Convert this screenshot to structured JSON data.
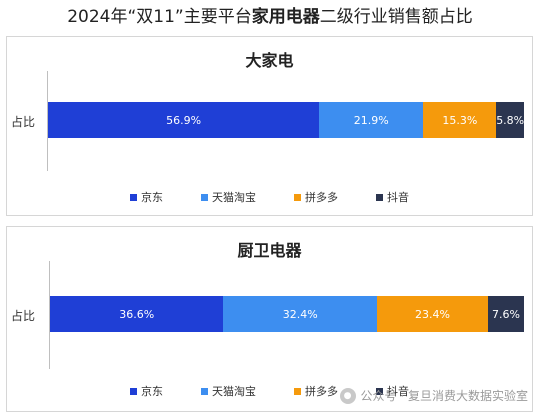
{
  "page": {
    "title_prefix": "2024年“双11”主要平台",
    "title_bold": "家用电器",
    "title_suffix": "二级行业销售额占比"
  },
  "watermark": {
    "text": "公众号 · 复旦消费大数据实验室",
    "icon": "wechat-icon"
  },
  "colors": {
    "京东": "#1f3fd6",
    "天猫淘宝": "#3d8ef0",
    "拼多多": "#f59a0c",
    "抖音": "#2b3550"
  },
  "chart_data": [
    {
      "type": "bar",
      "stacked": true,
      "orientation": "horizontal",
      "percent": true,
      "title": "大家电",
      "categories": [
        "占比"
      ],
      "series": [
        {
          "name": "京东",
          "values": [
            56.9
          ],
          "label": "56.9%"
        },
        {
          "name": "天猫淘宝",
          "values": [
            21.9
          ],
          "label": "21.9%"
        },
        {
          "name": "拼多多",
          "values": [
            15.3
          ],
          "label": "15.3%"
        },
        {
          "name": "抖音",
          "values": [
            5.8
          ],
          "label": "5.8%"
        }
      ],
      "legend": "bottom"
    },
    {
      "type": "bar",
      "stacked": true,
      "orientation": "horizontal",
      "percent": true,
      "title": "厨卫电器",
      "categories": [
        "占比"
      ],
      "series": [
        {
          "name": "京东",
          "values": [
            36.6
          ],
          "label": "36.6%"
        },
        {
          "name": "天猫淘宝",
          "values": [
            32.4
          ],
          "label": "32.4%"
        },
        {
          "name": "拼多多",
          "values": [
            23.4
          ],
          "label": "23.4%"
        },
        {
          "name": "抖音",
          "values": [
            7.6
          ],
          "label": "7.6%"
        }
      ],
      "legend": "bottom"
    }
  ]
}
